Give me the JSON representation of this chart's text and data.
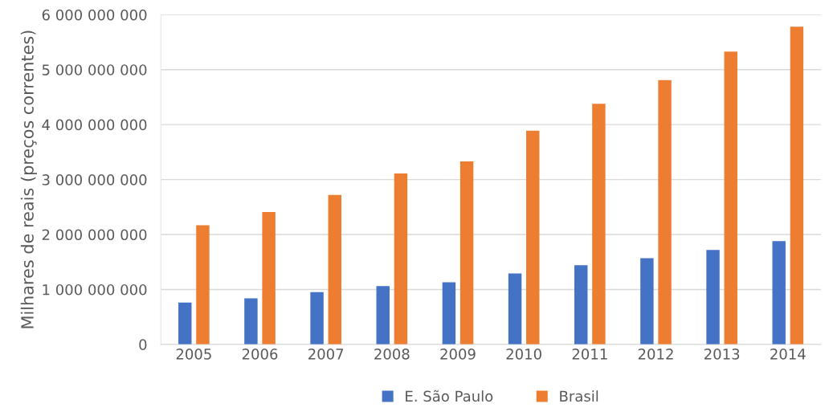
{
  "chart_data": {
    "type": "bar",
    "ylabel": "Milhares de reais (preços correntes)",
    "categories": [
      "2005",
      "2006",
      "2007",
      "2008",
      "2009",
      "2010",
      "2011",
      "2012",
      "2013",
      "2014"
    ],
    "series": [
      {
        "name": "E. São Paulo",
        "color": "#4472c4",
        "values": [
          760000000,
          840000000,
          950000000,
          1060000000,
          1130000000,
          1290000000,
          1440000000,
          1570000000,
          1720000000,
          1880000000
        ]
      },
      {
        "name": "Brasil",
        "color": "#ed7d31",
        "values": [
          2170000000,
          2410000000,
          2720000000,
          3110000000,
          3330000000,
          3890000000,
          4380000000,
          4810000000,
          5330000000,
          5780000000
        ]
      }
    ],
    "ylim": [
      0,
      6000000000
    ],
    "yticks": [
      0,
      {
        "value": 1000000000,
        "label": "1 000 000 000"
      },
      {
        "value": 2000000000,
        "label": "2 000 000 000"
      },
      {
        "value": 3000000000,
        "label": "3 000 000 000"
      },
      {
        "value": 4000000000,
        "label": "4 000 000 000"
      },
      {
        "value": 5000000000,
        "label": "5 000 000 000"
      },
      {
        "value": 6000000000,
        "label": "6 000 000 000"
      }
    ],
    "grid": "y",
    "legend": "bottom"
  }
}
